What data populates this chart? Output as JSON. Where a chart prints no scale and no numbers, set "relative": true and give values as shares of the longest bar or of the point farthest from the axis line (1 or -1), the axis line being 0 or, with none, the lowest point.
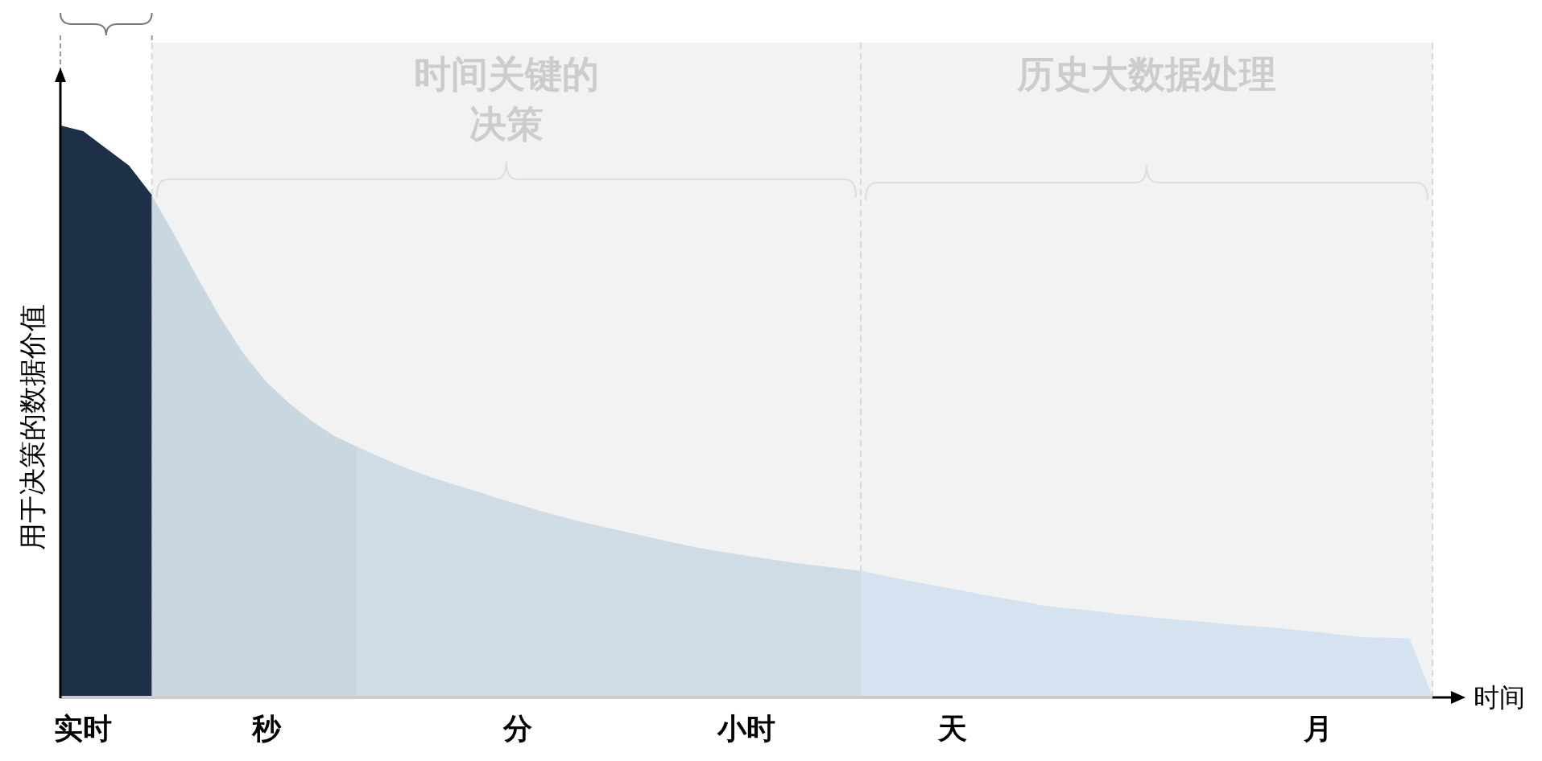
{
  "chart_data": {
    "type": "area",
    "relative": true,
    "xlabel": "时间",
    "ylabel": "用于决策的数据价值",
    "categories": [
      null,
      "实时",
      null,
      null,
      null,
      null,
      null,
      null,
      null,
      "秒",
      null,
      null,
      null,
      null,
      null,
      null,
      null,
      null,
      null,
      null,
      "分",
      null,
      null,
      null,
      null,
      null,
      null,
      null,
      null,
      null,
      "小时",
      null,
      null,
      null,
      null,
      null,
      null,
      null,
      null,
      "天",
      null,
      null,
      null,
      null,
      null,
      null,
      null,
      null,
      null,
      null,
      null,
      null,
      null,
      null,
      null,
      "月",
      null,
      null,
      null,
      null,
      null
    ],
    "series": [
      {
        "color": "#1e3048",
        "values": [
          1.0,
          0.99,
          0.96,
          0.93,
          0.878,
          null,
          null,
          null,
          null,
          null,
          null,
          null,
          null,
          null,
          null,
          null,
          null,
          null,
          null,
          null,
          null,
          null,
          null,
          null,
          null,
          null,
          null,
          null,
          null,
          null,
          null,
          null,
          null,
          null,
          null,
          null,
          null,
          null,
          null,
          null,
          null,
          null,
          null,
          null,
          null,
          null,
          null,
          null,
          null,
          null,
          null,
          null,
          null,
          null,
          null,
          null,
          null,
          null,
          null,
          null,
          null
        ]
      },
      {
        "color": "#c9d7e1",
        "values": [
          null,
          null,
          null,
          null,
          0.878,
          0.807,
          0.733,
          0.663,
          0.601,
          0.551,
          0.514,
          0.482,
          0.456,
          0.437,
          null,
          null,
          null,
          null,
          null,
          null,
          null,
          null,
          null,
          null,
          null,
          null,
          null,
          null,
          null,
          null,
          null,
          null,
          null,
          null,
          null,
          null,
          null,
          null,
          null,
          null,
          null,
          null,
          null,
          null,
          null,
          null,
          null,
          null,
          null,
          null,
          null,
          null,
          null,
          null,
          null,
          null,
          null,
          null,
          null,
          null,
          null
        ]
      },
      {
        "color": "#cfdce5",
        "values": [
          null,
          null,
          null,
          null,
          null,
          null,
          null,
          null,
          null,
          null,
          null,
          null,
          null,
          0.437,
          0.419,
          0.402,
          0.387,
          0.374,
          0.362,
          0.349,
          0.337,
          0.325,
          0.314,
          0.304,
          0.295,
          0.286,
          0.277,
          0.268,
          0.26,
          0.253,
          0.247,
          0.241,
          0.235,
          0.23,
          0.225,
          0.22,
          null,
          null,
          null,
          null,
          null,
          null,
          null,
          null,
          null,
          null,
          null,
          null,
          null,
          null,
          null,
          null,
          null,
          null,
          null,
          null,
          null,
          null,
          null,
          null,
          null
        ]
      },
      {
        "color": "#d5e2ef",
        "values": [
          null,
          null,
          null,
          null,
          null,
          null,
          null,
          null,
          null,
          null,
          null,
          null,
          null,
          null,
          null,
          null,
          null,
          null,
          null,
          null,
          null,
          null,
          null,
          null,
          null,
          null,
          null,
          null,
          null,
          null,
          null,
          null,
          null,
          null,
          null,
          0.22,
          0.212,
          0.204,
          0.196,
          0.189,
          0.181,
          0.174,
          0.167,
          0.159,
          0.155,
          0.151,
          0.146,
          0.142,
          0.138,
          0.134,
          0.131,
          0.127,
          0.124,
          0.121,
          0.117,
          0.113,
          0.108,
          0.104,
          0.103,
          0.102,
          0
        ]
      }
    ],
    "annotations": [
      "时间关键的决策",
      "历史大数据处理"
    ]
  }
}
